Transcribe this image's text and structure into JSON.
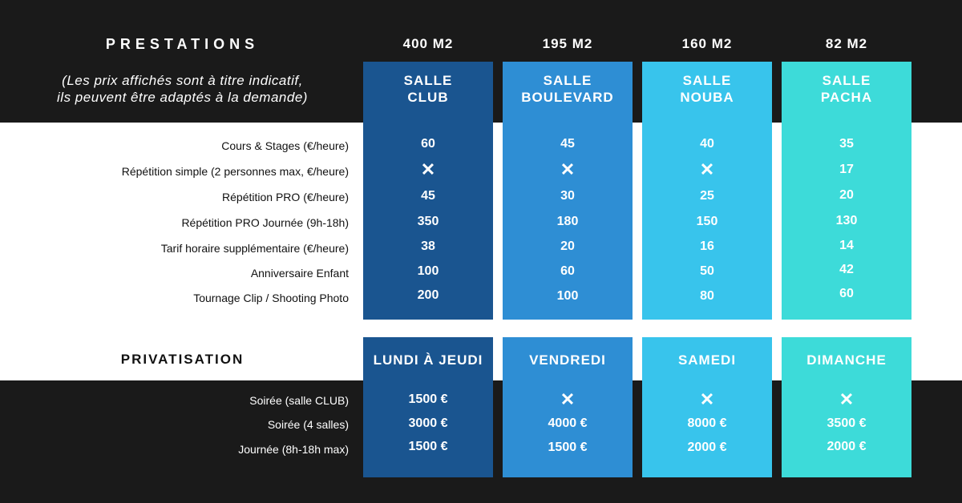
{
  "header": {
    "title": "PRESTATIONS",
    "note_line1": "(Les prix affichés sont à titre indicatif,",
    "note_line2": "ils peuvent être adaptés à la demande)"
  },
  "colors": {
    "club": "#1a5590",
    "boulevard": "#2e8ed4",
    "nouba": "#38c4ec",
    "pacha": "#3ddbd9",
    "dark": "#1a1a1a"
  },
  "rooms": [
    {
      "size": "400 M2",
      "name1": "SALLE",
      "name2": "CLUB",
      "prices": [
        "60",
        "✕",
        "45",
        "350",
        "38",
        "100",
        "200"
      ],
      "day": "LUNDI À JEUDI",
      "priv": [
        "1500 €",
        "3000 €",
        "1500 €"
      ]
    },
    {
      "size": "195 M2",
      "name1": "SALLE",
      "name2": "BOULEVARD",
      "prices": [
        "45",
        "✕",
        "30",
        "180",
        "20",
        "60",
        "100"
      ],
      "day": "VENDREDI",
      "priv": [
        "✕",
        "4000 €",
        "1500 €"
      ]
    },
    {
      "size": "160 M2",
      "name1": "SALLE",
      "name2": "NOUBA",
      "prices": [
        "40",
        "✕",
        "25",
        "150",
        "16",
        "50",
        "80"
      ],
      "day": "SAMEDI",
      "priv": [
        "✕",
        "8000 €",
        "2000 €"
      ]
    },
    {
      "size": "82 M2",
      "name1": "SALLE",
      "name2": "PACHA",
      "prices": [
        "35",
        "17",
        "20",
        "130",
        "14",
        "42",
        "60"
      ],
      "day": "DIMANCHE",
      "priv": [
        "✕",
        "3500 €",
        "2000 €"
      ]
    }
  ],
  "services": [
    "Cours & Stages (€/heure)",
    "Répétition simple (2 personnes max, €/heure)",
    "Répétition PRO (€/heure)",
    "Répétition PRO Journée (9h-18h)",
    "Tarif horaire supplémentaire (€/heure)",
    "Anniversaire Enfant",
    "Tournage Clip / Shooting Photo"
  ],
  "privatisation": {
    "title": "PRIVATISATION",
    "rows": [
      "Soirée (salle CLUB)",
      "Soirée (4 salles)",
      "Journée (8h-18h max)"
    ]
  }
}
